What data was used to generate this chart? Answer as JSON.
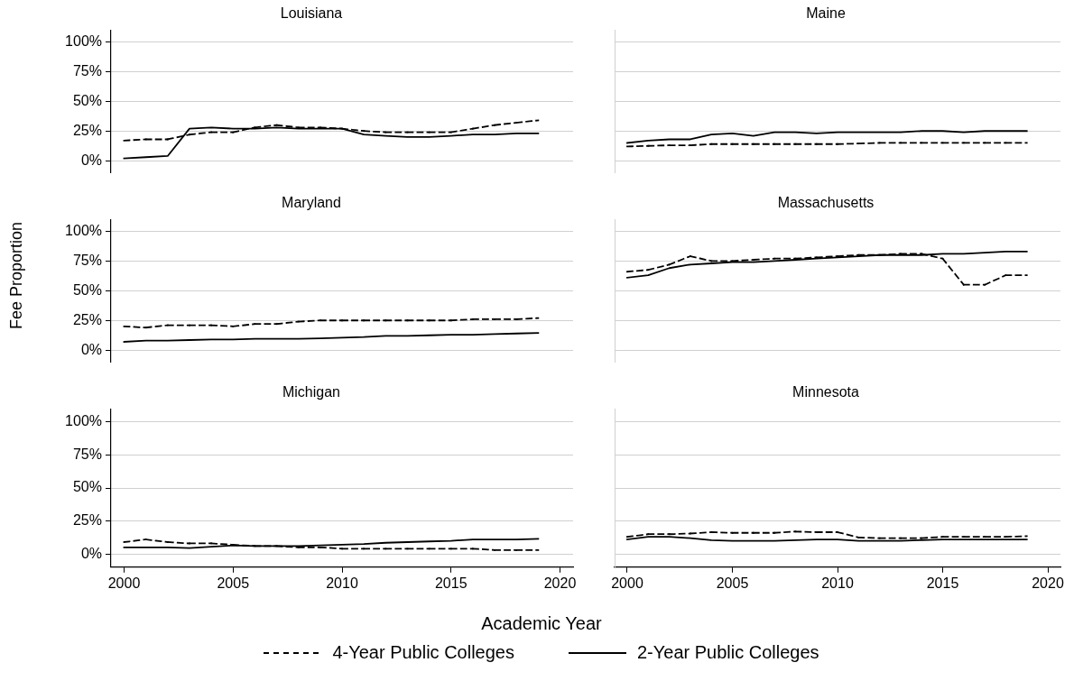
{
  "chart_data": [
    {
      "type": "line",
      "title": "Louisiana",
      "ylabel": "Fee Proportion",
      "legend": "bottom",
      "grid": "y",
      "tick_labels": "y",
      "x": [
        2000,
        2001,
        2002,
        2003,
        2004,
        2005,
        2006,
        2007,
        2008,
        2009,
        2010,
        2011,
        2012,
        2013,
        2014,
        2015,
        2016,
        2017,
        2018,
        2019
      ],
      "xlim": [
        1999.4,
        2020.6
      ],
      "xticks": [
        2000,
        2005,
        2010,
        2015,
        2020
      ],
      "ylim": [
        -10,
        110
      ],
      "yticks": [
        {
          "value": 0,
          "label": "0%"
        },
        {
          "value": 25,
          "label": "25%"
        },
        {
          "value": 50,
          "label": "50%"
        },
        {
          "value": 75,
          "label": "75%"
        },
        {
          "value": 100,
          "label": "100%"
        }
      ],
      "series": [
        {
          "name": "4-Year Public Colleges",
          "color": "#000000",
          "line_style": "dashed",
          "values": [
            17,
            18,
            18,
            22,
            24,
            24,
            28,
            30,
            28,
            28,
            27,
            25,
            24,
            24,
            24,
            24,
            27,
            30,
            32,
            34
          ]
        },
        {
          "name": "2-Year Public Colleges",
          "color": "#000000",
          "line_style": "solid",
          "values": [
            2,
            3,
            4,
            27,
            28,
            27,
            27,
            28,
            27,
            27,
            27,
            22,
            21,
            20,
            20,
            21,
            22,
            22,
            23,
            23
          ]
        }
      ]
    },
    {
      "type": "line",
      "title": "Maine",
      "grid": "y",
      "tick_labels": false,
      "x": [
        2000,
        2001,
        2002,
        2003,
        2004,
        2005,
        2006,
        2007,
        2008,
        2009,
        2010,
        2011,
        2012,
        2013,
        2014,
        2015,
        2016,
        2017,
        2018,
        2019
      ],
      "xlim": [
        1999.4,
        2020.6
      ],
      "xticks": [
        2000,
        2005,
        2010,
        2015,
        2020
      ],
      "ylim": [
        -10,
        110
      ],
      "yticks": [
        0,
        25,
        50,
        75,
        100
      ],
      "series": [
        {
          "name": "4-Year Public Colleges",
          "color": "#000000",
          "line_style": "dashed",
          "values": [
            12,
            12.5,
            13,
            13,
            14,
            14,
            14,
            14,
            14,
            14,
            14,
            14.5,
            15,
            15,
            15,
            15,
            15,
            15,
            15,
            15
          ]
        },
        {
          "name": "2-Year Public Colleges",
          "color": "#000000",
          "line_style": "solid",
          "values": [
            15,
            17,
            18,
            18,
            22,
            23,
            21,
            24,
            24,
            23,
            24,
            24,
            24,
            24,
            25,
            25,
            24,
            25,
            25,
            25
          ]
        }
      ]
    },
    {
      "type": "line",
      "title": "Maryland",
      "grid": "y",
      "tick_labels": "y",
      "x": [
        2000,
        2001,
        2002,
        2003,
        2004,
        2005,
        2006,
        2007,
        2008,
        2009,
        2010,
        2011,
        2012,
        2013,
        2014,
        2015,
        2016,
        2017,
        2018,
        2019
      ],
      "xlim": [
        1999.4,
        2020.6
      ],
      "xticks": [
        2000,
        2005,
        2010,
        2015,
        2020
      ],
      "ylim": [
        -10,
        110
      ],
      "yticks": [
        {
          "value": 0,
          "label": "0%"
        },
        {
          "value": 25,
          "label": "25%"
        },
        {
          "value": 50,
          "label": "50%"
        },
        {
          "value": 75,
          "label": "75%"
        },
        {
          "value": 100,
          "label": "100%"
        }
      ],
      "series": [
        {
          "name": "4-Year Public Colleges",
          "color": "#000000",
          "line_style": "dashed",
          "values": [
            20,
            19,
            21,
            21,
            21,
            20,
            22,
            22,
            24,
            25,
            25,
            25,
            25,
            25,
            25,
            25,
            26,
            26,
            26,
            27
          ]
        },
        {
          "name": "2-Year Public Colleges",
          "color": "#000000",
          "line_style": "solid",
          "values": [
            7,
            8,
            8,
            8.5,
            9,
            9,
            9.5,
            9.5,
            9.5,
            10,
            10.5,
            11,
            12,
            12,
            12.5,
            13,
            13,
            13.5,
            14,
            14.5
          ]
        }
      ]
    },
    {
      "type": "line",
      "title": "Massachusetts",
      "grid": "y",
      "tick_labels": false,
      "x": [
        2000,
        2001,
        2002,
        2003,
        2004,
        2005,
        2006,
        2007,
        2008,
        2009,
        2010,
        2011,
        2012,
        2013,
        2014,
        2015,
        2016,
        2017,
        2018,
        2019
      ],
      "xlim": [
        1999.4,
        2020.6
      ],
      "xticks": [
        2000,
        2005,
        2010,
        2015,
        2020
      ],
      "ylim": [
        -10,
        110
      ],
      "yticks": [
        0,
        25,
        50,
        75,
        100
      ],
      "series": [
        {
          "name": "4-Year Public Colleges",
          "color": "#000000",
          "line_style": "dashed",
          "values": [
            66,
            67.5,
            72,
            79,
            75,
            75,
            76,
            77,
            77,
            78,
            79,
            80,
            80,
            81,
            81,
            77,
            55,
            55,
            63,
            63
          ]
        },
        {
          "name": "2-Year Public Colleges",
          "color": "#000000",
          "line_style": "solid",
          "values": [
            61,
            63,
            69,
            72,
            73,
            74,
            74,
            75,
            76,
            77,
            78,
            79,
            80,
            80,
            80,
            81,
            81,
            82,
            83,
            83
          ]
        }
      ]
    },
    {
      "type": "line",
      "title": "Michigan",
      "xlabel": "Academic Year",
      "grid": "y",
      "x": [
        2000,
        2001,
        2002,
        2003,
        2004,
        2005,
        2006,
        2007,
        2008,
        2009,
        2010,
        2011,
        2012,
        2013,
        2014,
        2015,
        2016,
        2017,
        2018,
        2019
      ],
      "xlim": [
        1999.4,
        2020.6
      ],
      "xticks": [
        2000,
        2005,
        2010,
        2015,
        2020
      ],
      "ylim": [
        -10,
        110
      ],
      "yticks": [
        {
          "value": 0,
          "label": "0%"
        },
        {
          "value": 25,
          "label": "25%"
        },
        {
          "value": 50,
          "label": "50%"
        },
        {
          "value": 75,
          "label": "75%"
        },
        {
          "value": 100,
          "label": "100%"
        }
      ],
      "series": [
        {
          "name": "4-Year Public Colleges",
          "color": "#000000",
          "line_style": "dashed",
          "values": [
            9,
            11,
            9,
            8,
            8,
            7,
            6,
            6,
            5,
            5,
            4,
            4,
            4,
            4,
            4,
            4,
            4,
            3,
            3,
            3
          ]
        },
        {
          "name": "2-Year Public Colleges",
          "color": "#000000",
          "line_style": "solid",
          "values": [
            5,
            5,
            5,
            4.5,
            5.5,
            6.5,
            6,
            6,
            6,
            6.5,
            7,
            7.5,
            8.5,
            9,
            9.5,
            10,
            11,
            11,
            11,
            11.5
          ]
        }
      ]
    },
    {
      "type": "line",
      "title": "Minnesota",
      "grid": "y",
      "tick_labels": "x",
      "x": [
        2000,
        2001,
        2002,
        2003,
        2004,
        2005,
        2006,
        2007,
        2008,
        2009,
        2010,
        2011,
        2012,
        2013,
        2014,
        2015,
        2016,
        2017,
        2018,
        2019
      ],
      "xlim": [
        1999.4,
        2020.6
      ],
      "xticks": [
        2000,
        2005,
        2010,
        2015,
        2020
      ],
      "ylim": [
        -10,
        110
      ],
      "yticks": [
        0,
        25,
        50,
        75,
        100
      ],
      "series": [
        {
          "name": "4-Year Public Colleges",
          "color": "#000000",
          "line_style": "dashed",
          "values": [
            13,
            15,
            15,
            15.5,
            16.5,
            16,
            16,
            16,
            17,
            16.5,
            16.5,
            12.5,
            12,
            12,
            12,
            13,
            13,
            13,
            13,
            13.5
          ]
        },
        {
          "name": "2-Year Public Colleges",
          "color": "#000000",
          "line_style": "solid",
          "values": [
            11,
            13,
            13,
            12,
            10.5,
            10,
            10,
            10,
            10.5,
            11,
            11,
            10,
            10,
            10,
            10.5,
            11,
            11,
            11,
            11,
            11
          ]
        }
      ]
    }
  ]
}
